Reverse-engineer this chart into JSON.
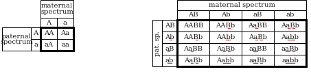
{
  "left_cells": [
    [
      "AA",
      "Aa"
    ],
    [
      "aA",
      "aa"
    ]
  ],
  "left_col_headers": [
    "A",
    "a"
  ],
  "left_row_headers": [
    "A",
    "a"
  ],
  "left_top_label_line1": "maternal",
  "left_top_label_line2": "spectrum",
  "left_side_label_line1": "paternal",
  "left_side_label_line2": "spectrum",
  "right_cells": [
    [
      "AABB",
      "AABb",
      "AaBB",
      "AaBb"
    ],
    [
      "AABb",
      "AAbb",
      "AaBb",
      "Aabb"
    ],
    [
      "AaBB",
      "AaBb",
      "aaBB",
      "aaBb"
    ],
    [
      "AaBb",
      "Aabb",
      "aaBb",
      "aabb"
    ]
  ],
  "right_col_headers": [
    "AB",
    "Ab",
    "aB",
    "ab"
  ],
  "right_row_headers": [
    "AB",
    "Ab",
    "aB",
    "ab"
  ],
  "right_top_label": "maternal spectrum",
  "right_side_label": "pat. sp.",
  "text_color": "#1a1a1a",
  "underline_color": "#d04040",
  "font_size": 7.2,
  "font_family": "DejaVu Serif"
}
